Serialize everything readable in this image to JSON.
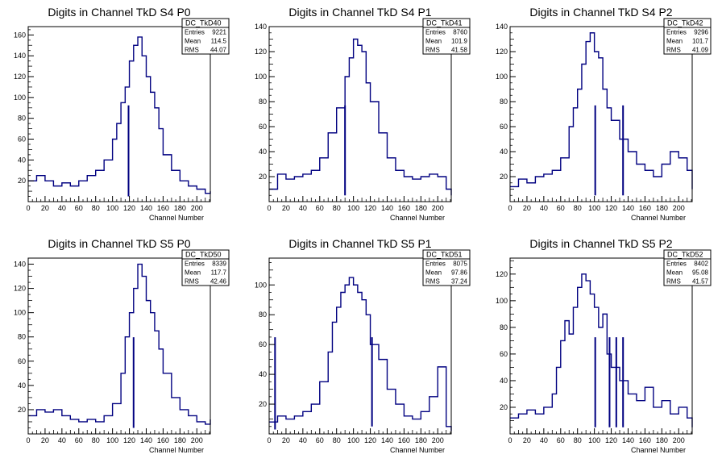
{
  "figure": {
    "line_color": "#000080",
    "xlabel": "Channel Number",
    "stat_labels": {
      "entries": "Entries",
      "mean": "Mean",
      "rms": "RMS"
    }
  },
  "chart_data": [
    {
      "type": "histogram",
      "title": "Digits in Channel TkD S4 P0",
      "name": "DC_TkD40",
      "stats": {
        "entries": "9221",
        "mean": "114.5",
        "rms": "44.07"
      },
      "xlim": [
        0,
        216
      ],
      "ylim": [
        0,
        168
      ],
      "xticks": [
        0,
        20,
        40,
        60,
        80,
        100,
        120,
        140,
        160,
        180,
        200
      ],
      "yticks": [
        20,
        40,
        60,
        80,
        100,
        120,
        140,
        160
      ],
      "x": [
        0,
        10,
        20,
        30,
        40,
        50,
        60,
        70,
        80,
        90,
        100,
        105,
        110,
        115,
        120,
        125,
        130,
        135,
        140,
        145,
        150,
        155,
        160,
        170,
        180,
        190,
        200,
        210,
        216
      ],
      "y": [
        20,
        25,
        20,
        15,
        18,
        15,
        20,
        25,
        30,
        40,
        60,
        75,
        95,
        110,
        135,
        150,
        158,
        140,
        120,
        105,
        90,
        70,
        45,
        30,
        20,
        15,
        12,
        8,
        10
      ],
      "spikes": [
        {
          "x": 119,
          "y": 5
        }
      ]
    },
    {
      "type": "histogram",
      "title": "Digits in Channel TkD S4 P1",
      "name": "DC_TkD41",
      "stats": {
        "entries": "8760",
        "mean": "101.9",
        "rms": "41.58"
      },
      "xlim": [
        0,
        216
      ],
      "ylim": [
        0,
        140
      ],
      "xticks": [
        0,
        20,
        40,
        60,
        80,
        100,
        120,
        140,
        160,
        180,
        200
      ],
      "yticks": [
        20,
        40,
        60,
        80,
        100,
        120,
        140
      ],
      "x": [
        0,
        10,
        20,
        30,
        40,
        50,
        60,
        70,
        80,
        90,
        95,
        100,
        105,
        110,
        115,
        120,
        130,
        140,
        150,
        160,
        170,
        180,
        190,
        200,
        210,
        216
      ],
      "y": [
        10,
        22,
        18,
        20,
        22,
        25,
        35,
        55,
        75,
        100,
        115,
        130,
        125,
        120,
        95,
        80,
        55,
        35,
        25,
        20,
        18,
        20,
        22,
        20,
        10,
        5
      ],
      "spikes": [
        {
          "x": 90,
          "y": 5
        }
      ]
    },
    {
      "type": "histogram",
      "title": "Digits in Channel TkD S4 P2",
      "name": "DC_TkD42",
      "stats": {
        "entries": "9296",
        "mean": "101.7",
        "rms": "41.09"
      },
      "xlim": [
        0,
        216
      ],
      "ylim": [
        0,
        140
      ],
      "xticks": [
        0,
        20,
        40,
        60,
        80,
        100,
        120,
        140,
        160,
        180,
        200
      ],
      "yticks": [
        20,
        40,
        60,
        80,
        100,
        120,
        140
      ],
      "x": [
        0,
        10,
        20,
        30,
        40,
        50,
        60,
        70,
        75,
        80,
        85,
        90,
        95,
        100,
        105,
        110,
        115,
        120,
        130,
        140,
        150,
        160,
        170,
        180,
        190,
        200,
        210,
        216
      ],
      "y": [
        12,
        18,
        15,
        20,
        22,
        25,
        35,
        60,
        75,
        90,
        110,
        128,
        135,
        120,
        115,
        90,
        75,
        65,
        50,
        40,
        30,
        25,
        20,
        30,
        40,
        35,
        25,
        10
      ],
      "spikes": [
        {
          "x": 101,
          "y": 5
        },
        {
          "x": 134,
          "y": 5
        }
      ]
    },
    {
      "type": "histogram",
      "title": "Digits in Channel TkD S5 P0",
      "name": "DC_TkD50",
      "stats": {
        "entries": "8339",
        "mean": "117.7",
        "rms": "42.46"
      },
      "xlim": [
        0,
        216
      ],
      "ylim": [
        0,
        145
      ],
      "xticks": [
        0,
        20,
        40,
        60,
        80,
        100,
        120,
        140,
        160,
        180,
        200
      ],
      "yticks": [
        20,
        40,
        60,
        80,
        100,
        120,
        140
      ],
      "x": [
        0,
        10,
        20,
        30,
        40,
        50,
        60,
        70,
        80,
        90,
        100,
        110,
        115,
        120,
        125,
        130,
        135,
        140,
        145,
        150,
        155,
        160,
        170,
        180,
        190,
        200,
        210,
        216
      ],
      "y": [
        15,
        20,
        18,
        20,
        15,
        12,
        10,
        12,
        10,
        15,
        25,
        50,
        80,
        100,
        120,
        140,
        130,
        110,
        100,
        85,
        70,
        50,
        30,
        20,
        15,
        10,
        8,
        12
      ],
      "spikes": [
        {
          "x": 125,
          "y": 5
        }
      ]
    },
    {
      "type": "histogram",
      "title": "Digits in Channel TkD S5 P1",
      "name": "DC_TkD51",
      "stats": {
        "entries": "8075",
        "mean": "97.86",
        "rms": "37.24"
      },
      "xlim": [
        0,
        216
      ],
      "ylim": [
        0,
        118
      ],
      "xticks": [
        0,
        20,
        40,
        60,
        80,
        100,
        120,
        140,
        160,
        180,
        200
      ],
      "yticks": [
        20,
        40,
        60,
        80,
        100
      ],
      "x": [
        0,
        10,
        20,
        30,
        40,
        50,
        60,
        70,
        75,
        80,
        85,
        90,
        95,
        100,
        105,
        110,
        115,
        120,
        130,
        140,
        150,
        160,
        170,
        180,
        190,
        200,
        210,
        216
      ],
      "y": [
        8,
        12,
        10,
        12,
        15,
        20,
        35,
        55,
        75,
        85,
        95,
        100,
        105,
        100,
        95,
        90,
        80,
        60,
        50,
        30,
        20,
        12,
        10,
        15,
        25,
        45,
        5,
        2
      ],
      "spikes": [
        {
          "x": 7,
          "y": 3
        },
        {
          "x": 122,
          "y": 5
        }
      ]
    },
    {
      "type": "histogram",
      "title": "Digits in Channel TkD S5 P2",
      "name": "DC_TkD52",
      "stats": {
        "entries": "8402",
        "mean": "95.08",
        "rms": "41.57"
      },
      "xlim": [
        0,
        216
      ],
      "ylim": [
        0,
        132
      ],
      "xticks": [
        0,
        20,
        40,
        60,
        80,
        100,
        120,
        140,
        160,
        180,
        200
      ],
      "yticks": [
        20,
        40,
        60,
        80,
        100,
        120
      ],
      "x": [
        0,
        10,
        20,
        30,
        40,
        50,
        55,
        60,
        65,
        70,
        75,
        80,
        85,
        90,
        95,
        100,
        105,
        110,
        115,
        120,
        130,
        140,
        150,
        160,
        170,
        180,
        190,
        200,
        210,
        216
      ],
      "y": [
        12,
        15,
        18,
        15,
        20,
        30,
        50,
        70,
        85,
        75,
        95,
        110,
        120,
        115,
        105,
        95,
        80,
        90,
        60,
        50,
        40,
        30,
        25,
        35,
        20,
        25,
        15,
        20,
        12,
        5
      ],
      "spikes": [
        {
          "x": 101,
          "y": 5
        },
        {
          "x": 118,
          "y": 5
        },
        {
          "x": 126,
          "y": 5
        },
        {
          "x": 134,
          "y": 5
        }
      ]
    }
  ]
}
